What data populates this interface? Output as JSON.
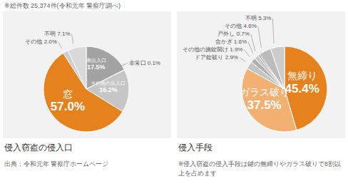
{
  "note": "※総件数 25,374件(令和元年 警察庁調べ)",
  "chart_data": [
    {
      "type": "pie",
      "title": "侵入窃盗の侵入口",
      "annotation": "出典：令和元年 警察庁ホームページ",
      "categories": [
        "表出入口",
        "非常口",
        "その他の出入口",
        "窓",
        "その他",
        "不明"
      ],
      "values": [
        17.5,
        0.1,
        16.2,
        57.0,
        2.0,
        7.1
      ],
      "value_labels": [
        "17.5%",
        "0.1%",
        "16.2%",
        "57.0%",
        "2.0%",
        "7.1%"
      ],
      "colors": [
        "#a3a3a3",
        "#b9b9b9",
        "#c6c6c6",
        "#e5821e",
        "#cfcfcf",
        "#d9d9d9"
      ],
      "data_labels": true
    },
    {
      "type": "pie",
      "title": "侵入手段",
      "annotation": "※侵入窃盗の侵入手段は鍵の無締りやガラス破りで8割以上を占めます",
      "categories": [
        "無締り",
        "ガラス破り",
        "ドア錠破り",
        "その他の施錠開け",
        "合かぎ",
        "戸外し",
        "その他",
        "不明"
      ],
      "values": [
        45.4,
        37.5,
        2.9,
        1.9,
        1.6,
        0.7,
        4.6,
        5.3
      ],
      "value_labels": [
        "45.4%",
        "37.5%",
        "2.9%",
        "1.9%",
        "1.6%",
        "0.7%",
        "4.6%",
        "5.3%"
      ],
      "colors": [
        "#e5821e",
        "#f2b072",
        "#c4c4c4",
        "#b0b0b0",
        "#c8c8c8",
        "#a8a8a8",
        "#bcbcbc",
        "#cccccc"
      ],
      "data_labels": true
    }
  ]
}
